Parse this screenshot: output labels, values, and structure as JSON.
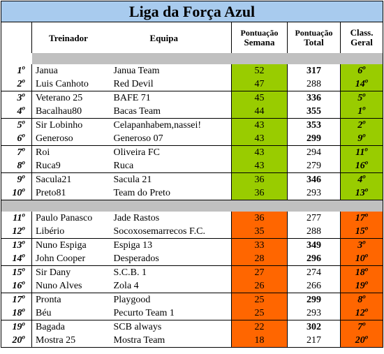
{
  "title": "Liga da Força Azul",
  "headers": {
    "treinador": "Treinador",
    "equipa": "Equipa",
    "pontuacao_semana_1": "Pontuação",
    "pontuacao_semana_2": "Semana",
    "pontuacao_total_1": "Pontuação",
    "pontuacao_total_2": "Total",
    "class_geral_1": "Class.",
    "class_geral_2": "Geral"
  },
  "colors": {
    "title_bg": "#a8cbee",
    "top_group": "#99cc00",
    "bottom_group": "#ff6600",
    "separator": "#c0c0c0"
  },
  "group_top": [
    {
      "rank": "1",
      "name": "Janua",
      "team": "Janua Team",
      "week": "52",
      "total": "317",
      "total_bold": true,
      "geral": "6"
    },
    {
      "rank": "2",
      "name": "Luis Canhoto",
      "team": "Red Devil",
      "week": "47",
      "total": "288",
      "total_bold": false,
      "geral": "14"
    },
    {
      "rank": "3",
      "name": "Veterano 25",
      "team": "BAFE 71",
      "week": "45",
      "total": "336",
      "total_bold": true,
      "geral": "5"
    },
    {
      "rank": "4",
      "name": "Bacalhau80",
      "team": "Bacas Team",
      "week": "44",
      "total": "355",
      "total_bold": true,
      "geral": "1"
    },
    {
      "rank": "5",
      "name": "Sir Lobinho",
      "team": "Celapanhabem,nassei!",
      "week": "43",
      "total": "353",
      "total_bold": true,
      "geral": "2"
    },
    {
      "rank": "6",
      "name": "Generoso",
      "team": "Generoso 07",
      "week": "43",
      "total": "299",
      "total_bold": true,
      "geral": "9"
    },
    {
      "rank": "7",
      "name": "Roi",
      "team": "Oliveira FC",
      "week": "43",
      "total": "294",
      "total_bold": false,
      "geral": "11"
    },
    {
      "rank": "8",
      "name": "Ruca9",
      "team": "Ruca",
      "week": "43",
      "total": "279",
      "total_bold": false,
      "geral": "16"
    },
    {
      "rank": "9",
      "name": "Sacula21",
      "team": "Sacula 21",
      "week": "36",
      "total": "346",
      "total_bold": true,
      "geral": "4"
    },
    {
      "rank": "10",
      "name": "Preto81",
      "team": "Team do Preto",
      "week": "36",
      "total": "293",
      "total_bold": false,
      "geral": "13"
    }
  ],
  "group_bottom": [
    {
      "rank": "11",
      "name": "Paulo Panasco",
      "team": "Jade Rastos",
      "week": "36",
      "total": "277",
      "total_bold": false,
      "geral": "17"
    },
    {
      "rank": "12",
      "name": "Libério",
      "team": "Socoxosemarrecos F.C.",
      "week": "35",
      "total": "288",
      "total_bold": false,
      "geral": "15"
    },
    {
      "rank": "13",
      "name": "Nuno Espiga",
      "team": "Espiga 13",
      "week": "33",
      "total": "349",
      "total_bold": true,
      "geral": "3"
    },
    {
      "rank": "14",
      "name": "John Cooper",
      "team": "Desperados",
      "week": "28",
      "total": "296",
      "total_bold": true,
      "geral": "10"
    },
    {
      "rank": "15",
      "name": "Sir Dany",
      "team": "S.C.B. 1",
      "week": "27",
      "total": "274",
      "total_bold": false,
      "geral": "18"
    },
    {
      "rank": "16",
      "name": "Nuno Alves",
      "team": "Zola 4",
      "week": "26",
      "total": "266",
      "total_bold": false,
      "geral": "19"
    },
    {
      "rank": "17",
      "name": "Pronta",
      "team": "Playgood",
      "week": "25",
      "total": "299",
      "total_bold": true,
      "geral": "8"
    },
    {
      "rank": "18",
      "name": "Béu",
      "team": "Pecurto Team 1",
      "week": "25",
      "total": "293",
      "total_bold": false,
      "geral": "12"
    },
    {
      "rank": "19",
      "name": "Bagada",
      "team": "SCB always",
      "week": "22",
      "total": "302",
      "total_bold": true,
      "geral": "7"
    },
    {
      "rank": "20",
      "name": "Mostra 25",
      "team": "Mostra Team",
      "week": "18",
      "total": "217",
      "total_bold": false,
      "geral": "20"
    }
  ]
}
